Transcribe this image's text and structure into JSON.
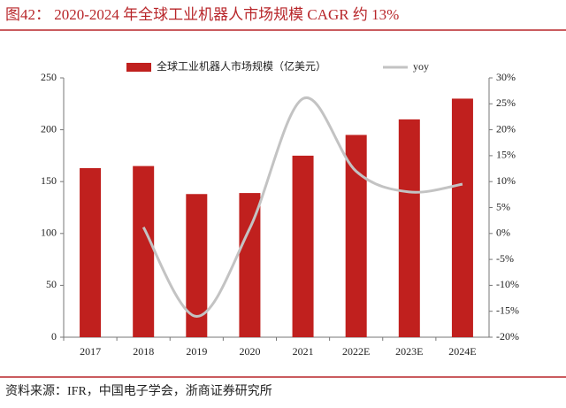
{
  "chart_data": {
    "type": "bar_line",
    "title": "图42：  2020-2024 年全球工业机器人市场规模 CAGR 约 13%",
    "source": "资料来源：IFR，中国电子学会，浙商证券研究所",
    "categories": [
      "2017",
      "2018",
      "2019",
      "2020",
      "2021",
      "2022E",
      "2023E",
      "2024E"
    ],
    "series": [
      {
        "name": "全球工业机器人市场规模（亿美元）",
        "color": "#c0201e",
        "type": "bar",
        "values": [
          163,
          165,
          138,
          139,
          175,
          195,
          210,
          230
        ]
      },
      {
        "name": "yoy",
        "color": "#c3c3c3",
        "type": "line",
        "axis": "y2",
        "values": [
          null,
          1.2,
          -16,
          1,
          26,
          12,
          8,
          9.5
        ]
      }
    ],
    "ylim": [
      0,
      250
    ],
    "yticks": [
      0,
      50,
      100,
      150,
      200,
      250
    ],
    "y2lim": [
      -20,
      30
    ],
    "y2ticks": [
      {
        "value": -20,
        "label": "-20%"
      },
      {
        "value": -15,
        "label": "-15%"
      },
      {
        "value": -10,
        "label": "-10%"
      },
      {
        "value": -5,
        "label": "-5%"
      },
      {
        "value": 0,
        "label": "0%"
      },
      {
        "value": 5,
        "label": "5%"
      },
      {
        "value": 10,
        "label": "10%"
      },
      {
        "value": 15,
        "label": "15%"
      },
      {
        "value": 20,
        "label": "20%"
      },
      {
        "value": 25,
        "label": "25%"
      },
      {
        "value": 30,
        "label": "30%"
      }
    ],
    "legend": "top"
  }
}
